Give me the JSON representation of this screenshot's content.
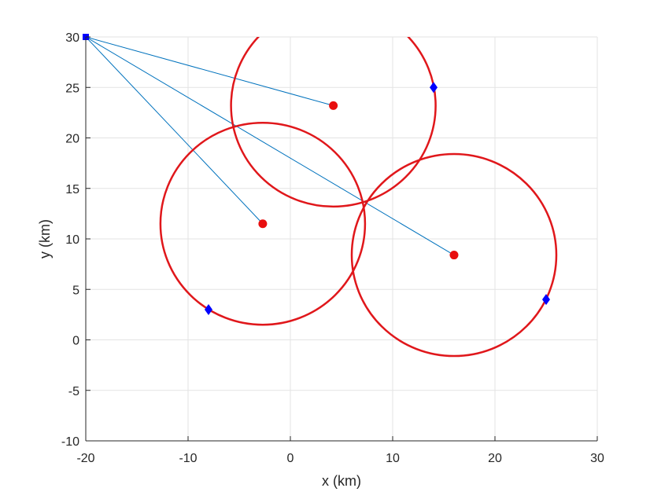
{
  "chart_data": {
    "type": "scatter",
    "title": "",
    "xlabel": "x (km)",
    "ylabel": "y (km)",
    "xlim": [
      -20,
      30
    ],
    "ylim": [
      -10,
      30
    ],
    "xticks": [
      -20,
      -10,
      0,
      10,
      20,
      30
    ],
    "yticks": [
      -10,
      -5,
      0,
      5,
      10,
      15,
      20,
      25,
      30
    ],
    "grid": true,
    "origin": {
      "x": -20,
      "y": 30,
      "marker": "square",
      "color": "#0000ff"
    },
    "centers": [
      {
        "x": 4.2,
        "y": 23.2,
        "radius": 10.0
      },
      {
        "x": -2.7,
        "y": 11.5,
        "radius": 10.0
      },
      {
        "x": 16.0,
        "y": 8.4,
        "radius": 10.0
      }
    ],
    "points": [
      {
        "x": 14.0,
        "y": 25.0
      },
      {
        "x": -8.0,
        "y": 3.0
      },
      {
        "x": 25.0,
        "y": 4.0
      }
    ],
    "colors": {
      "circle": "#e0171b",
      "center": "#e80f0f",
      "point": "#0000ff",
      "line": "#0072bd",
      "grid": "#e3e3e3",
      "axis": "#262626"
    }
  }
}
